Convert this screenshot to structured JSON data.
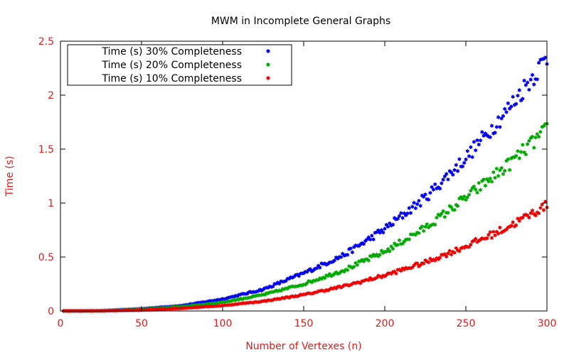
{
  "chart_data": {
    "type": "scatter",
    "title": "MWM in Incomplete General Graphs",
    "xlabel": "Number of Vertexes (n)",
    "ylabel": "Time (s)",
    "xlim": [
      0,
      300
    ],
    "ylim": [
      0,
      2.5
    ],
    "xticks": [
      0,
      50,
      100,
      150,
      200,
      250,
      300
    ],
    "yticks": [
      0,
      0.5,
      1,
      1.5,
      2,
      2.5
    ],
    "ytick_labels": [
      "0",
      "0.5",
      "1",
      "1.5",
      "2",
      "2.5"
    ],
    "grid": false,
    "legend_position": "top-left",
    "axis_color": "#e41a1c",
    "series": [
      {
        "name": "Time (s) 30% Completeness",
        "color": "#0000ee",
        "x": [
          0,
          25,
          50,
          75,
          100,
          125,
          150,
          175,
          200,
          225,
          250,
          275,
          300
        ],
        "y": [
          0,
          0.002,
          0.02,
          0.05,
          0.11,
          0.2,
          0.35,
          0.52,
          0.76,
          1.05,
          1.42,
          1.85,
          2.35
        ]
      },
      {
        "name": "Time (s) 20% Completeness",
        "color": "#00aa00",
        "x": [
          0,
          25,
          50,
          75,
          100,
          125,
          150,
          175,
          200,
          225,
          250,
          275,
          300
        ],
        "y": [
          0,
          0.001,
          0.015,
          0.04,
          0.08,
          0.15,
          0.25,
          0.38,
          0.55,
          0.77,
          1.05,
          1.34,
          1.68
        ]
      },
      {
        "name": "Time (s) 10% Completeness",
        "color": "#ee0000",
        "x": [
          0,
          25,
          50,
          75,
          100,
          125,
          150,
          175,
          200,
          225,
          250,
          275,
          300
        ],
        "y": [
          0,
          0.001,
          0.008,
          0.025,
          0.05,
          0.09,
          0.15,
          0.23,
          0.33,
          0.45,
          0.6,
          0.77,
          0.98
        ]
      }
    ]
  }
}
